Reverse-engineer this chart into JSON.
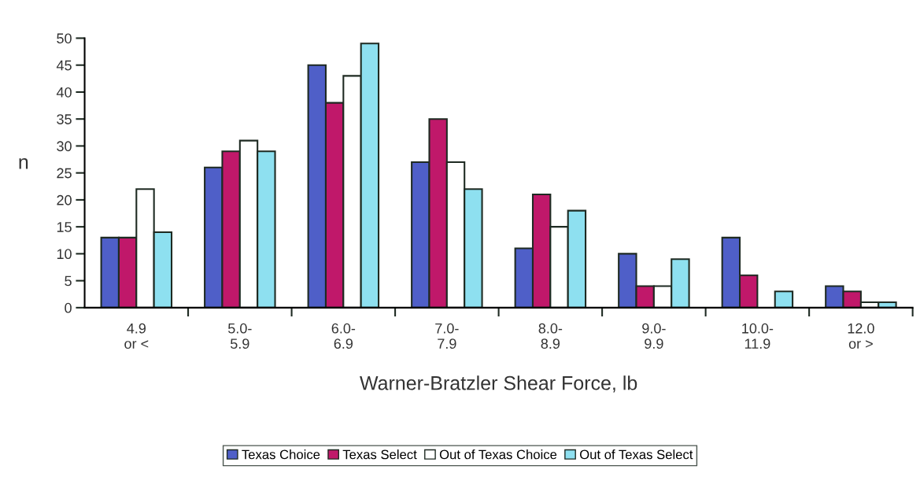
{
  "chart_data": {
    "type": "bar",
    "xlabel": "Warner-Bratzler Shear Force, lb",
    "ylabel": "n",
    "categories": [
      "4.9\nor <",
      "5.0-\n5.9",
      "6.0-\n6.9",
      "7.0-\n7.9",
      "8.0-\n8.9",
      "9.0-\n9.9",
      "10.0-\n11.9",
      "12.0\nor >"
    ],
    "series": [
      {
        "name": "Texas Choice",
        "color": "#4f5fc8",
        "values": [
          13,
          26,
          45,
          27,
          11,
          10,
          13,
          4
        ]
      },
      {
        "name": "Texas Select",
        "color": "#c0186a",
        "values": [
          13,
          29,
          38,
          35,
          21,
          4,
          6,
          3
        ]
      },
      {
        "name": "Out of Texas Choice",
        "color": "#ffffff",
        "values": [
          22,
          31,
          43,
          27,
          15,
          4,
          null,
          1
        ]
      },
      {
        "name": "Out of Texas Select",
        "color": "#8ee0f0",
        "values": [
          14,
          29,
          49,
          22,
          18,
          9,
          3,
          1
        ]
      }
    ],
    "ylim": [
      0,
      50
    ],
    "yticks": [
      0,
      5,
      10,
      15,
      20,
      25,
      30,
      35,
      40,
      45,
      50
    ],
    "grid": false,
    "legend": "bottom"
  }
}
